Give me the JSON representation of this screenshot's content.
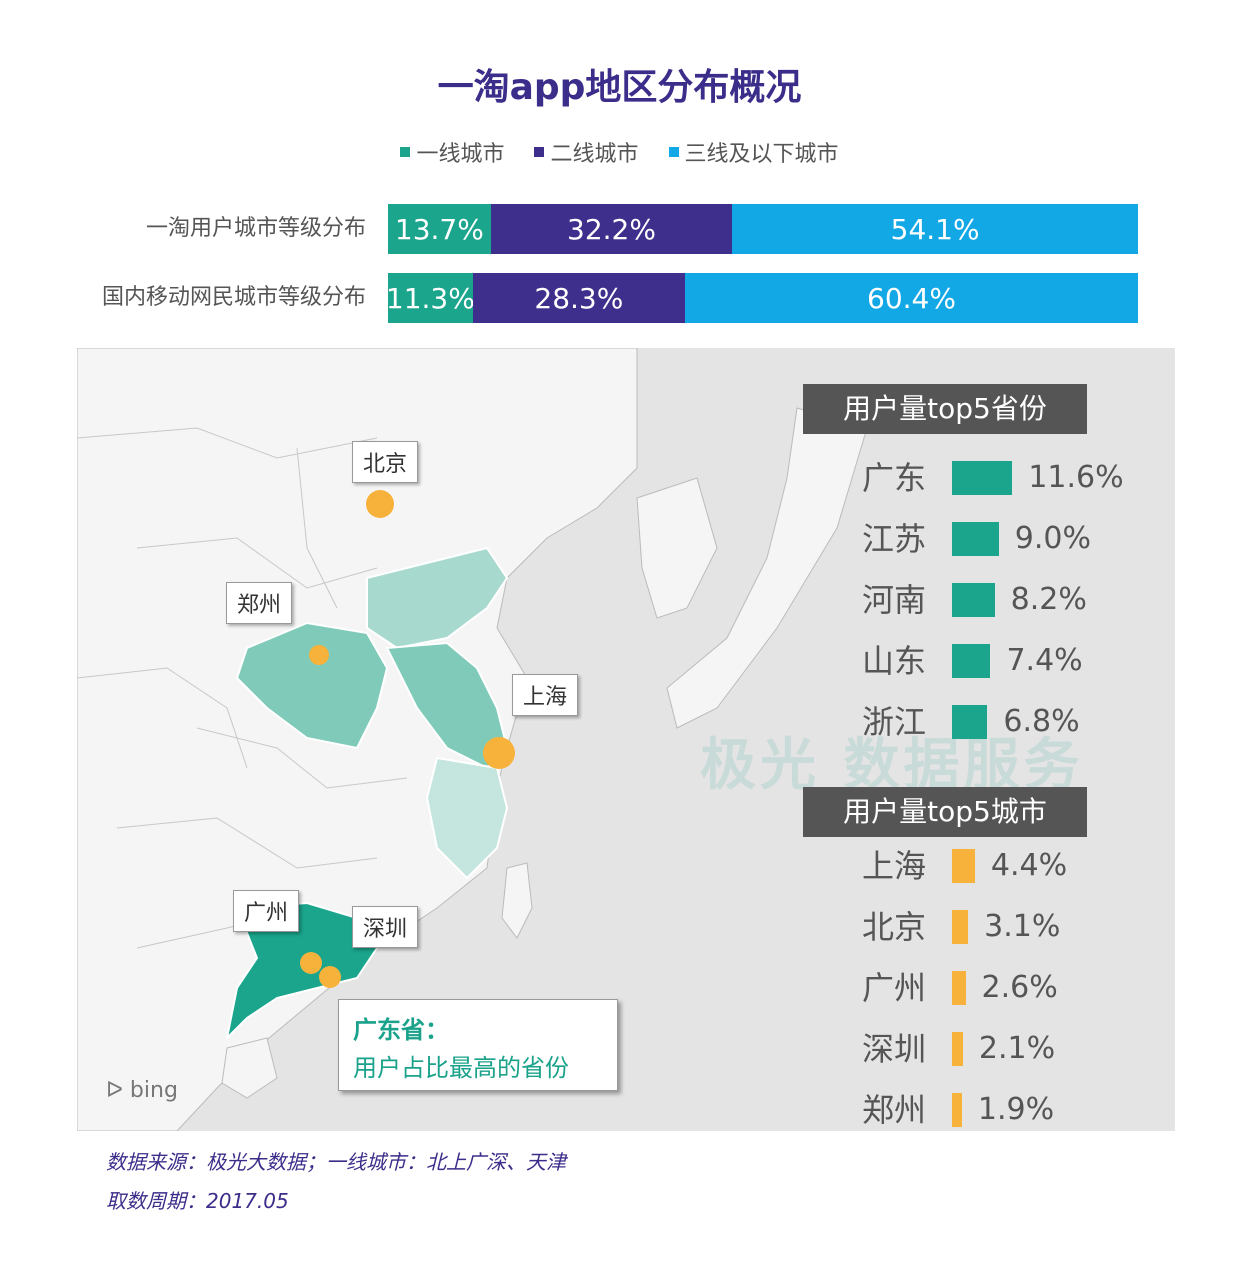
{
  "title": "一淘app地区分布概况",
  "legend": [
    {
      "label": "一线城市",
      "color": "#1aa58c"
    },
    {
      "label": "二线城市",
      "color": "#3f2f8c"
    },
    {
      "label": "三线及以下城市",
      "color": "#12a8e6"
    }
  ],
  "chart_data": [
    {
      "type": "bar",
      "orientation": "horizontal-stacked",
      "categories": [
        "一淘用户城市等级分布",
        "国内移动网民城市等级分布"
      ],
      "series": [
        {
          "name": "一线城市",
          "values": [
            13.7,
            11.3
          ],
          "labels": [
            "13.7%",
            "11.3%"
          ]
        },
        {
          "name": "二线城市",
          "values": [
            32.2,
            28.3
          ],
          "labels": [
            "32.2%",
            "28.3%"
          ]
        },
        {
          "name": "三线及以下城市",
          "values": [
            54.1,
            60.4
          ],
          "labels": [
            "54.1%",
            "60.4%"
          ]
        }
      ],
      "xlim": [
        0,
        100
      ]
    },
    {
      "type": "bar",
      "title": "用户量top5省份",
      "categories": [
        "广东",
        "江苏",
        "河南",
        "山东",
        "浙江"
      ],
      "values": [
        11.6,
        9.0,
        8.2,
        7.4,
        6.8
      ],
      "labels": [
        "11.6%",
        "9.0%",
        "8.2%",
        "7.4%",
        "6.8%"
      ],
      "color": "#1aa58c"
    },
    {
      "type": "bar",
      "title": "用户量top5城市",
      "categories": [
        "上海",
        "北京",
        "广州",
        "深圳",
        "郑州"
      ],
      "values": [
        4.4,
        3.1,
        2.6,
        2.1,
        1.9
      ],
      "labels": [
        "4.4%",
        "3.1%",
        "2.6%",
        "2.1%",
        "1.9%"
      ],
      "color": "#f7b23b"
    }
  ],
  "map": {
    "city_labels": [
      "北京",
      "郑州",
      "上海",
      "广州",
      "深圳"
    ],
    "callout_title": "广东省：",
    "callout_text": "用户占比最高的省份",
    "bing": "bing",
    "watermark": "极光 数据服务"
  },
  "footer": {
    "source": "数据来源：极光大数据；一线城市：北上广深、天津",
    "period": "取数周期：2017.05"
  }
}
